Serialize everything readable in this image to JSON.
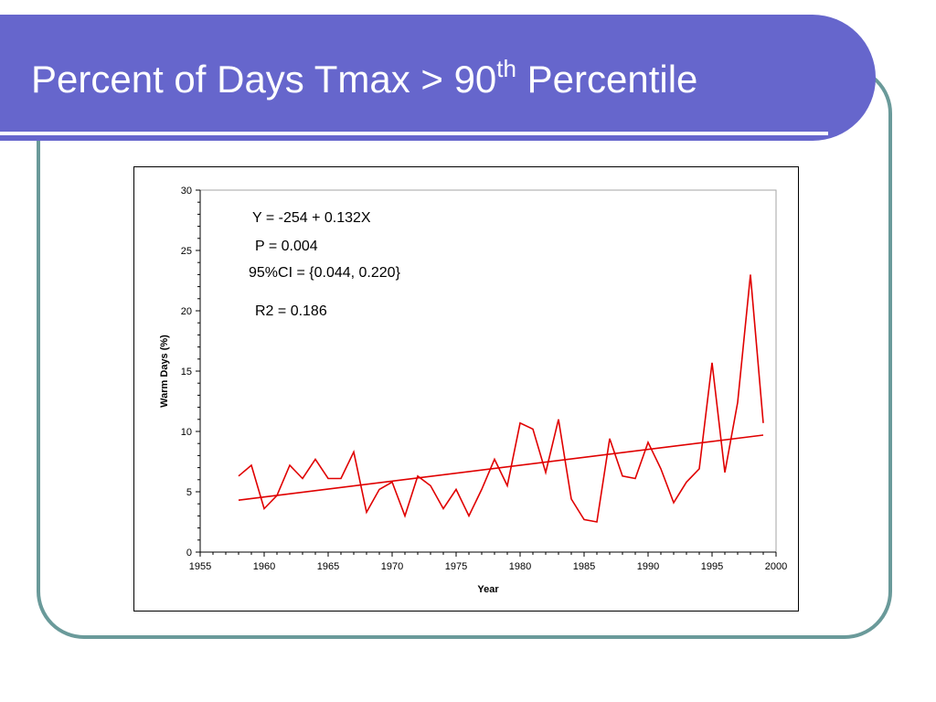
{
  "slide": {
    "title_prefix": "Percent of Days Tmax > 90",
    "title_sup": "th",
    "title_suffix": " Percentile"
  },
  "colors": {
    "title_bar": "#6666cc",
    "frame_border": "#6a9a9a",
    "series_line": "#e00000"
  },
  "annotations": {
    "equation": "Y = -254 + 0.132X",
    "p_value": "P = 0.004",
    "ci": "95%CI = {0.044, 0.220}",
    "r2": "R2 = 0.186"
  },
  "chart_data": {
    "type": "line",
    "title": "",
    "xlabel": "Year",
    "ylabel": "Warm Days (%)",
    "xlim": [
      1955,
      2000
    ],
    "ylim": [
      0,
      30
    ],
    "x_ticks": [
      1955,
      1960,
      1965,
      1970,
      1975,
      1980,
      1985,
      1990,
      1995,
      2000
    ],
    "y_ticks": [
      0,
      5,
      10,
      15,
      20,
      25,
      30
    ],
    "grid": false,
    "legend": "none",
    "series": [
      {
        "x": [
          1958,
          1959,
          1960,
          1961,
          1962,
          1963,
          1964,
          1965,
          1966,
          1967,
          1968,
          1969,
          1970,
          1971,
          1972,
          1973,
          1974,
          1975,
          1976,
          1977,
          1978,
          1979,
          1980,
          1981,
          1982,
          1983,
          1984,
          1985,
          1986,
          1987,
          1988,
          1989,
          1990,
          1991,
          1992,
          1993,
          1994,
          1995,
          1996,
          1997,
          1998,
          1999
        ],
        "values": [
          6.3,
          7.2,
          3.6,
          4.7,
          7.2,
          6.1,
          7.7,
          6.1,
          6.1,
          8.3,
          3.3,
          5.2,
          5.8,
          3.0,
          6.3,
          5.5,
          3.6,
          5.2,
          3.0,
          5.2,
          7.7,
          5.5,
          10.7,
          10.2,
          6.6,
          11.0,
          4.4,
          2.7,
          2.5,
          9.4,
          6.3,
          6.1,
          9.1,
          6.9,
          4.1,
          5.8,
          6.9,
          15.7,
          6.6,
          12.4,
          23.0,
          10.7
        ]
      },
      {
        "x": [
          1958,
          1999
        ],
        "values": [
          4.3,
          9.7
        ]
      }
    ]
  }
}
